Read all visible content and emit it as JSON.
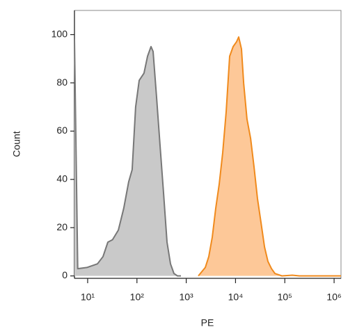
{
  "chart_data": {
    "type": "histogram-line",
    "x_label": "PE",
    "y_label": "Count",
    "log_x": true,
    "xlim": [
      5.4,
      1380000
    ],
    "ylim": [
      -1,
      110
    ],
    "xticks": [
      {
        "value": 10,
        "label": "10¹"
      },
      {
        "value": 100,
        "label": "10²"
      },
      {
        "value": 1000,
        "label": "10³"
      },
      {
        "value": 10000,
        "label": "10⁴"
      },
      {
        "value": 100000,
        "label": "10⁵"
      },
      {
        "value": 1000000,
        "label": "10⁶"
      }
    ],
    "yticks": [
      0,
      20,
      40,
      60,
      80,
      100
    ],
    "series": [
      {
        "color": "#777777",
        "fill": "#c9c9c9",
        "x": [
          5.4,
          6.3,
          9.7,
          15.8,
          20.5,
          25.7,
          32,
          42,
          54,
          68,
          80,
          94,
          111,
          139,
          164,
          193,
          213,
          250,
          294,
          347,
          407,
          480,
          564,
          664,
          782
        ],
        "values": [
          98,
          3,
          3.5,
          5,
          8,
          14,
          15,
          19,
          28,
          39,
          44,
          70,
          81,
          84,
          91,
          95,
          93,
          74,
          54,
          34,
          14,
          5,
          1,
          0,
          0
        ]
      },
      {
        "color": "#f08a1c",
        "fill": "#fdc898",
        "x": [
          1760,
          2440,
          2870,
          3370,
          3970,
          4670,
          5500,
          6470,
          7600,
          8950,
          10500,
          11600,
          13200,
          14600,
          17100,
          20200,
          23800,
          27900,
          32900,
          38700,
          45500,
          53600,
          63000,
          87300,
          142000,
          197000,
          1380000
        ],
        "values": [
          0,
          3.5,
          8,
          16,
          28,
          38,
          51,
          68,
          91,
          95,
          97,
          99,
          94,
          80,
          65,
          57,
          45,
          32,
          22,
          12,
          6,
          3,
          1,
          0,
          0.3,
          0,
          0
        ]
      }
    ]
  }
}
